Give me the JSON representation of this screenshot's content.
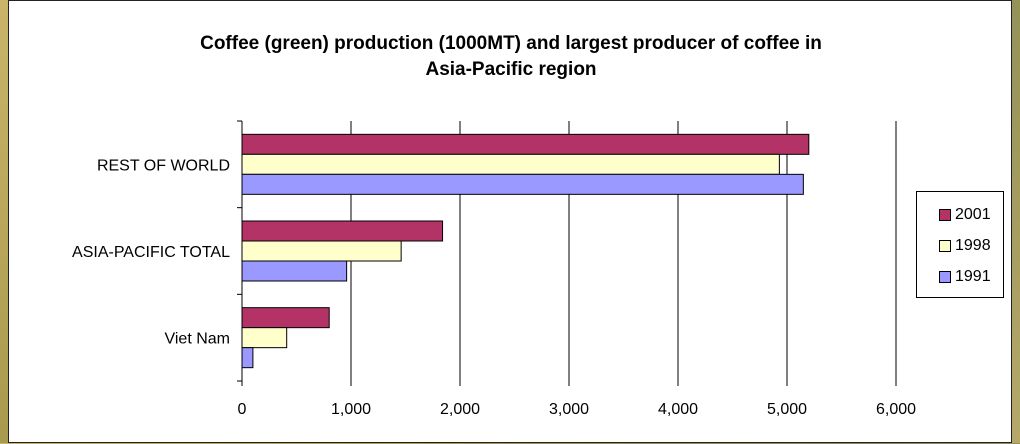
{
  "chart_data": {
    "type": "bar",
    "orientation": "horizontal",
    "title": "Coffee (green) production (1000MT) and largest producer of coffee in Asia-Pacific region",
    "title_lines": [
      "Coffee (green) production (1000MT) and largest producer of coffee in",
      "Asia-Pacific region"
    ],
    "categories": [
      "REST OF WORLD",
      "ASIA-PACIFIC TOTAL",
      "Viet Nam"
    ],
    "series": [
      {
        "name": "2001",
        "color": "#b33366",
        "values": [
          5200,
          1840,
          800
        ]
      },
      {
        "name": "1998",
        "color": "#ffffcc",
        "values": [
          4930,
          1460,
          410
        ]
      },
      {
        "name": "1991",
        "color": "#9999ff",
        "values": [
          5150,
          960,
          100
        ]
      }
    ],
    "xticks": [
      "0",
      "1,000",
      "2,000",
      "3,000",
      "4,000",
      "5,000",
      "6,000"
    ],
    "xlim": [
      0,
      6000
    ],
    "grid": "vertical",
    "legend": "right"
  }
}
